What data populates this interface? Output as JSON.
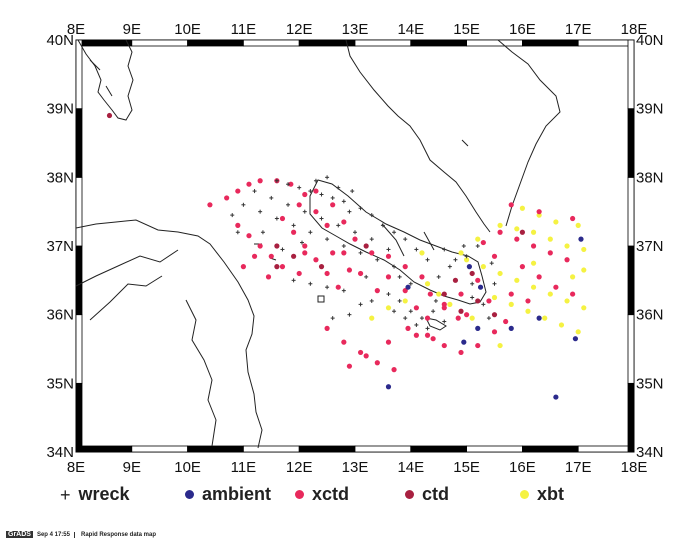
{
  "map": {
    "lon_labels": [
      "8E",
      "9E",
      "10E",
      "11E",
      "12E",
      "13E",
      "14E",
      "15E",
      "16E",
      "17E",
      "18E"
    ],
    "lat_labels": [
      "34N",
      "35N",
      "36N",
      "37N",
      "38N",
      "39N",
      "40N"
    ],
    "lon_range": [
      8,
      18
    ],
    "lat_range": [
      34,
      40
    ],
    "coastline_color": "#222222",
    "frame_colors": [
      "#000000",
      "#ffffff"
    ]
  },
  "legend": {
    "items": [
      {
        "label": "wreck",
        "symbol": "plus",
        "color": "#333333"
      },
      {
        "label": "ambient",
        "symbol": "dot",
        "color": "#2b2a8c"
      },
      {
        "label": "xctd",
        "symbol": "dot",
        "color": "#e8295c"
      },
      {
        "label": "ctd",
        "symbol": "dot",
        "color": "#a82040"
      },
      {
        "label": "xbt",
        "symbol": "dot",
        "color": "#f5f242"
      }
    ]
  },
  "footer": {
    "logo": "GrADS",
    "timestamp": "Sep  4 17:55",
    "caption": "Rapid Response data map"
  },
  "points": {
    "xctd": [
      [
        10.4,
        37.6
      ],
      [
        10.7,
        37.7
      ],
      [
        10.9,
        37.8
      ],
      [
        11.1,
        37.9
      ],
      [
        11.3,
        37.95
      ],
      [
        11.6,
        37.95
      ],
      [
        11.85,
        37.9
      ],
      [
        12.1,
        37.75
      ],
      [
        12.3,
        37.5
      ],
      [
        12.5,
        37.3
      ],
      [
        10.9,
        37.3
      ],
      [
        11.1,
        37.15
      ],
      [
        11.3,
        37.0
      ],
      [
        11.5,
        36.85
      ],
      [
        11.7,
        36.7
      ],
      [
        11.2,
        36.85
      ],
      [
        11.0,
        36.7
      ],
      [
        11.45,
        36.55
      ],
      [
        11.7,
        37.4
      ],
      [
        11.9,
        37.2
      ],
      [
        12.1,
        37.0
      ],
      [
        12.3,
        36.8
      ],
      [
        12.5,
        36.6
      ],
      [
        12.7,
        36.4
      ],
      [
        12.0,
        37.6
      ],
      [
        12.3,
        37.8
      ],
      [
        12.6,
        37.6
      ],
      [
        12.8,
        37.35
      ],
      [
        13.0,
        37.1
      ],
      [
        13.3,
        36.9
      ],
      [
        12.8,
        36.9
      ],
      [
        13.1,
        36.6
      ],
      [
        13.4,
        36.35
      ],
      [
        12.6,
        36.9
      ],
      [
        12.9,
        36.65
      ],
      [
        13.6,
        36.85
      ],
      [
        13.9,
        36.7
      ],
      [
        14.2,
        36.55
      ],
      [
        13.6,
        36.55
      ],
      [
        13.9,
        36.35
      ],
      [
        14.1,
        36.1
      ],
      [
        14.35,
        36.3
      ],
      [
        14.6,
        36.15
      ],
      [
        14.85,
        35.95
      ],
      [
        12.5,
        35.8
      ],
      [
        12.8,
        35.6
      ],
      [
        13.1,
        35.45
      ],
      [
        13.4,
        35.3
      ],
      [
        13.7,
        35.2
      ],
      [
        12.9,
        35.25
      ],
      [
        13.2,
        35.4
      ],
      [
        13.6,
        35.6
      ],
      [
        13.95,
        35.8
      ],
      [
        14.3,
        35.95
      ],
      [
        14.6,
        36.1
      ],
      [
        14.9,
        36.3
      ],
      [
        15.2,
        36.5
      ],
      [
        14.3,
        35.7
      ],
      [
        14.6,
        35.55
      ],
      [
        14.9,
        35.45
      ],
      [
        15.2,
        35.55
      ],
      [
        15.5,
        35.75
      ],
      [
        15.7,
        35.9
      ],
      [
        15.4,
        36.2
      ],
      [
        15.5,
        36.85
      ],
      [
        15.3,
        37.05
      ],
      [
        15.6,
        37.2
      ],
      [
        15.9,
        37.1
      ],
      [
        16.2,
        37.0
      ],
      [
        16.5,
        36.9
      ],
      [
        16.8,
        36.8
      ],
      [
        16.0,
        36.7
      ],
      [
        16.3,
        36.55
      ],
      [
        16.6,
        36.4
      ],
      [
        16.9,
        36.3
      ],
      [
        15.8,
        37.6
      ],
      [
        16.3,
        37.5
      ],
      [
        16.9,
        37.4
      ],
      [
        15.8,
        36.3
      ],
      [
        16.1,
        36.2
      ],
      [
        15.0,
        36.0
      ],
      [
        14.1,
        35.7
      ],
      [
        12.0,
        36.6
      ],
      [
        12.1,
        36.9
      ],
      [
        14.4,
        35.65
      ]
    ],
    "ctd": [
      [
        8.6,
        38.9
      ],
      [
        11.6,
        37.0
      ],
      [
        11.6,
        36.7
      ],
      [
        11.9,
        36.85
      ],
      [
        12.4,
        36.7
      ],
      [
        13.2,
        37.0
      ],
      [
        14.6,
        36.3
      ],
      [
        14.9,
        36.05
      ],
      [
        15.2,
        36.2
      ],
      [
        15.1,
        36.6
      ],
      [
        14.8,
        36.5
      ],
      [
        15.5,
        36.0
      ],
      [
        16.0,
        37.2
      ]
    ],
    "ambient": [
      [
        13.6,
        34.95
      ],
      [
        13.95,
        36.4
      ],
      [
        14.95,
        35.6
      ],
      [
        15.2,
        35.8
      ],
      [
        15.25,
        36.4
      ],
      [
        15.05,
        36.7
      ],
      [
        15.8,
        35.8
      ],
      [
        16.3,
        35.95
      ],
      [
        16.95,
        35.65
      ],
      [
        16.6,
        34.8
      ],
      [
        17.05,
        37.1
      ]
    ],
    "xbt": [
      [
        14.3,
        36.45
      ],
      [
        14.5,
        36.3
      ],
      [
        14.7,
        36.15
      ],
      [
        15.0,
        36.8
      ],
      [
        15.3,
        36.7
      ],
      [
        15.6,
        36.6
      ],
      [
        15.9,
        36.5
      ],
      [
        16.2,
        36.4
      ],
      [
        16.5,
        36.3
      ],
      [
        16.8,
        36.2
      ],
      [
        17.1,
        36.1
      ],
      [
        15.6,
        37.3
      ],
      [
        15.9,
        37.25
      ],
      [
        16.2,
        37.2
      ],
      [
        16.5,
        37.1
      ],
      [
        16.8,
        37.0
      ],
      [
        17.1,
        36.95
      ],
      [
        15.5,
        36.25
      ],
      [
        15.8,
        36.15
      ],
      [
        16.1,
        36.05
      ],
      [
        16.4,
        35.95
      ],
      [
        16.7,
        35.85
      ],
      [
        17.0,
        35.75
      ],
      [
        16.0,
        37.55
      ],
      [
        16.3,
        37.45
      ],
      [
        16.6,
        37.35
      ],
      [
        17.0,
        37.3
      ],
      [
        15.2,
        37.1
      ],
      [
        14.9,
        36.9
      ],
      [
        13.3,
        35.95
      ],
      [
        13.6,
        36.1
      ],
      [
        13.9,
        36.2
      ],
      [
        14.2,
        36.9
      ],
      [
        15.1,
        35.95
      ],
      [
        16.9,
        36.55
      ],
      [
        17.1,
        36.65
      ],
      [
        15.6,
        35.55
      ],
      [
        16.2,
        36.75
      ]
    ],
    "wreck": [
      [
        11.6,
        37.95
      ],
      [
        11.8,
        37.9
      ],
      [
        12.0,
        37.85
      ],
      [
        12.2,
        37.8
      ],
      [
        12.4,
        37.75
      ],
      [
        12.6,
        37.7
      ],
      [
        12.8,
        37.65
      ],
      [
        12.9,
        37.5
      ],
      [
        13.1,
        37.55
      ],
      [
        13.3,
        37.45
      ],
      [
        13.5,
        37.3
      ],
      [
        13.7,
        37.2
      ],
      [
        13.9,
        37.1
      ],
      [
        14.1,
        36.95
      ],
      [
        14.3,
        36.8
      ],
      [
        11.0,
        37.6
      ],
      [
        11.3,
        37.5
      ],
      [
        11.6,
        37.4
      ],
      [
        11.9,
        37.3
      ],
      [
        12.2,
        37.2
      ],
      [
        12.5,
        37.1
      ],
      [
        12.8,
        37.0
      ],
      [
        13.1,
        36.9
      ],
      [
        13.4,
        36.8
      ],
      [
        13.7,
        36.7
      ],
      [
        11.2,
        37.8
      ],
      [
        11.5,
        37.7
      ],
      [
        11.8,
        37.6
      ],
      [
        12.1,
        37.5
      ],
      [
        12.4,
        37.4
      ],
      [
        12.7,
        37.3
      ],
      [
        13.0,
        37.2
      ],
      [
        13.3,
        37.1
      ],
      [
        13.6,
        36.95
      ],
      [
        12.3,
        37.95
      ],
      [
        12.5,
        38.0
      ],
      [
        12.7,
        37.85
      ],
      [
        12.95,
        37.8
      ],
      [
        11.9,
        36.5
      ],
      [
        12.2,
        36.45
      ],
      [
        12.5,
        36.4
      ],
      [
        12.8,
        36.35
      ],
      [
        13.6,
        36.3
      ],
      [
        13.8,
        36.2
      ],
      [
        14.0,
        36.05
      ],
      [
        14.2,
        35.95
      ],
      [
        14.4,
        36.05
      ],
      [
        14.6,
        35.9
      ],
      [
        14.5,
        36.55
      ],
      [
        14.7,
        36.7
      ],
      [
        14.8,
        36.8
      ],
      [
        15.0,
        36.85
      ],
      [
        15.1,
        36.45
      ],
      [
        15.3,
        36.15
      ],
      [
        15.4,
        35.95
      ],
      [
        14.3,
        35.8
      ],
      [
        14.1,
        35.85
      ],
      [
        13.9,
        35.95
      ],
      [
        13.7,
        36.05
      ],
      [
        15.1,
        36.25
      ],
      [
        15.5,
        36.45
      ],
      [
        15.45,
        36.75
      ],
      [
        15.2,
        37.0
      ],
      [
        14.95,
        37.0
      ],
      [
        14.6,
        36.95
      ],
      [
        12.9,
        36.0
      ],
      [
        13.1,
        36.15
      ],
      [
        13.3,
        36.2
      ],
      [
        11.35,
        37.2
      ],
      [
        11.7,
        36.95
      ],
      [
        12.05,
        37.05
      ],
      [
        10.9,
        37.2
      ],
      [
        10.8,
        37.45
      ],
      [
        13.2,
        36.55
      ],
      [
        12.6,
        35.95
      ],
      [
        13.8,
        36.55
      ],
      [
        14.0,
        36.45
      ],
      [
        14.45,
        36.2
      ]
    ]
  }
}
